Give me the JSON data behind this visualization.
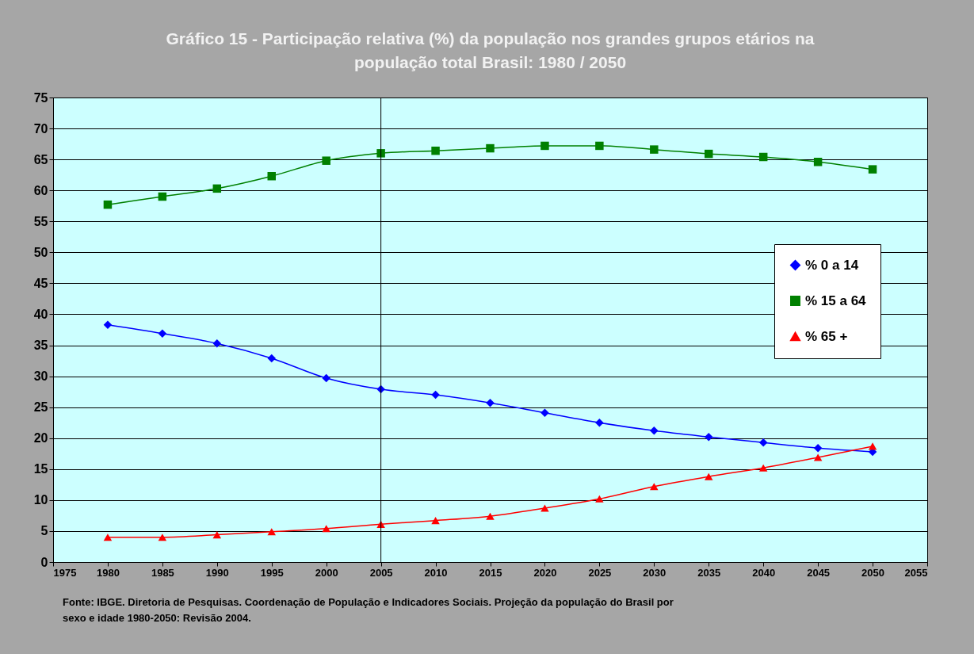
{
  "chart_data": {
    "type": "line",
    "title": [
      "Gráfico 15 - Participação relativa (%) da população nos grandes grupos etários na",
      "população total Brasil: 1980 / 2050"
    ],
    "x": [
      1980,
      1985,
      1990,
      1995,
      2000,
      2005,
      2010,
      2015,
      2020,
      2025,
      2030,
      2035,
      2040,
      2045,
      2050
    ],
    "series": [
      {
        "name": "% 0 a 14",
        "color": "#0000ff",
        "marker": "diamond",
        "values": [
          38.3,
          36.9,
          35.3,
          32.9,
          29.7,
          27.9,
          27.0,
          25.7,
          24.1,
          22.5,
          21.2,
          20.2,
          19.3,
          18.4,
          17.8
        ]
      },
      {
        "name": "% 15 a 64",
        "color": "#008000",
        "marker": "square",
        "values": [
          57.7,
          59.0,
          60.3,
          62.3,
          64.8,
          66.0,
          66.4,
          66.8,
          67.2,
          67.2,
          66.6,
          65.9,
          65.4,
          64.6,
          63.4
        ]
      },
      {
        "name": "% 65 +",
        "color": "#ff0000",
        "marker": "triangle",
        "values": [
          4.0,
          4.0,
          4.4,
          4.9,
          5.4,
          6.1,
          6.7,
          7.4,
          8.7,
          10.2,
          12.2,
          13.8,
          15.2,
          16.9,
          18.7
        ]
      }
    ],
    "xlim": [
      1975,
      2055
    ],
    "xticks": [
      1975,
      1980,
      1985,
      1990,
      1995,
      2000,
      2005,
      2010,
      2015,
      2020,
      2025,
      2030,
      2035,
      2040,
      2045,
      2050,
      2055
    ],
    "ylim": [
      0,
      75
    ],
    "yticks": [
      0,
      5,
      10,
      15,
      20,
      25,
      30,
      35,
      40,
      45,
      50,
      55,
      60,
      65,
      70,
      75
    ],
    "grid": "y",
    "legend": "right",
    "line_style": "solid",
    "ref_lines": [
      {
        "axis": "x",
        "value": 2005,
        "color": "#000000"
      }
    ],
    "annotations": [
      "Fonte: IBGE. Diretoria de Pesquisas. Coordenação de População e Indicadores Sociais. Projeção da população do Brasil por sexo e idade 1980-2050: Revisão 2004."
    ]
  }
}
